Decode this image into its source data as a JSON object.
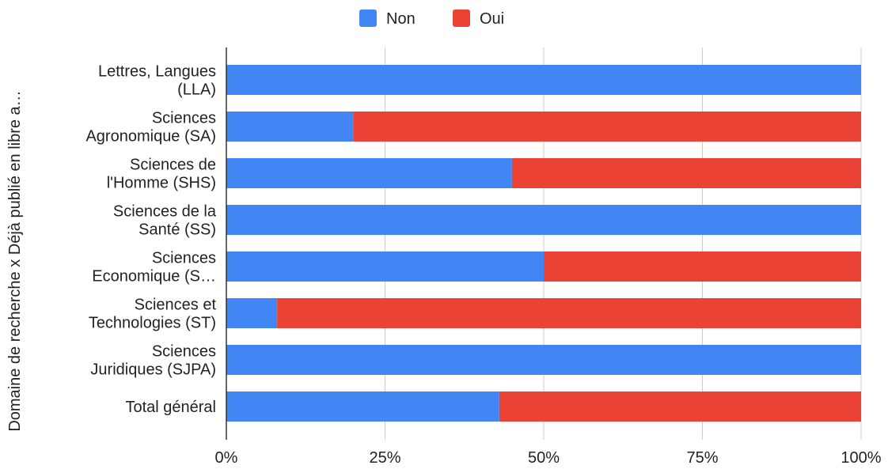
{
  "chart_data": {
    "type": "bar",
    "orientation": "horizontal",
    "stacked": true,
    "percent_scale": true,
    "ylabel": "Domaine de recherche x Déjà publié en libre a…",
    "xlabel": "",
    "xlim": [
      0,
      100
    ],
    "x_ticks": [
      "0%",
      "25%",
      "50%",
      "75%",
      "100%"
    ],
    "grid": true,
    "legend_position": "top-center",
    "categories": [
      [
        "Lettres, Langues",
        "(LLA)"
      ],
      [
        "Sciences",
        "Agronomique (SA)"
      ],
      [
        "Sciences de",
        "l'Homme (SHS)"
      ],
      [
        "Sciences de la",
        "Santé (SS)"
      ],
      [
        "Sciences",
        "Economique (S…"
      ],
      [
        "Sciences et",
        "Technologies (ST)"
      ],
      [
        "Sciences",
        "Juridiques (SJPA)"
      ],
      [
        "Total général"
      ]
    ],
    "series": [
      {
        "name": "Non",
        "color": "#4285f4",
        "values": [
          100,
          20,
          45,
          100,
          50,
          8,
          100,
          43
        ]
      },
      {
        "name": "Oui",
        "color": "#ea4335",
        "values": [
          0,
          80,
          55,
          0,
          50,
          92,
          0,
          57
        ]
      }
    ]
  }
}
